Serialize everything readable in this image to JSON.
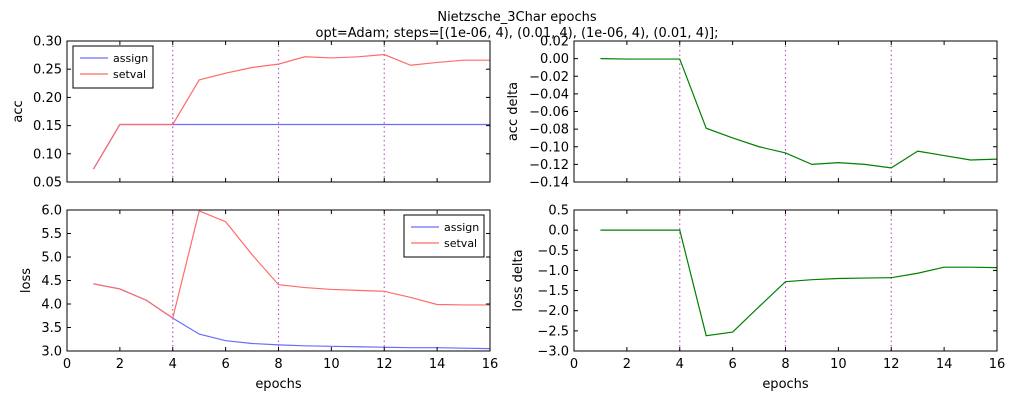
{
  "figure": {
    "title_line1": "Nietzsche_3Char epochs",
    "title_line2": "opt=Adam; steps=[(1e-06, 4), (0.01, 4), (1e-06, 4), (0.01, 4)];"
  },
  "colors": {
    "assign": "#6b6bff",
    "setval": "#ff6b6b",
    "delta": "#008000",
    "vline": "#bf5fbf"
  },
  "chart_data": [
    {
      "id": "acc",
      "type": "line",
      "ylabel": "acc",
      "xlabel": "",
      "xlim": [
        0,
        16
      ],
      "ylim": [
        0.05,
        0.3
      ],
      "xticks": [
        0,
        2,
        4,
        6,
        8,
        10,
        12,
        14,
        16
      ],
      "yticks": [
        0.05,
        0.1,
        0.15,
        0.2,
        0.25,
        0.3
      ],
      "ytick_labels": [
        "0.05",
        "0.10",
        "0.15",
        "0.20",
        "0.25",
        "0.30"
      ],
      "show_xticklabels": false,
      "vlines": [
        4,
        8,
        12
      ],
      "legend": "top-left",
      "x": [
        1,
        2,
        3,
        4,
        5,
        6,
        7,
        8,
        9,
        10,
        11,
        12,
        13,
        14,
        15,
        16
      ],
      "series": [
        {
          "name": "assign",
          "color_key": "assign",
          "values": [
            0.073,
            0.152,
            0.152,
            0.152,
            0.152,
            0.152,
            0.152,
            0.152,
            0.152,
            0.152,
            0.152,
            0.152,
            0.152,
            0.152,
            0.152,
            0.152
          ]
        },
        {
          "name": "setval",
          "color_key": "setval",
          "values": [
            0.073,
            0.152,
            0.152,
            0.152,
            0.231,
            0.243,
            0.253,
            0.259,
            0.272,
            0.27,
            0.272,
            0.276,
            0.257,
            0.262,
            0.266,
            0.266
          ]
        }
      ]
    },
    {
      "id": "acc_delta",
      "type": "line",
      "ylabel": "acc delta",
      "xlabel": "",
      "xlim": [
        0,
        16
      ],
      "ylim": [
        -0.14,
        0.02
      ],
      "xticks": [
        0,
        2,
        4,
        6,
        8,
        10,
        12,
        14,
        16
      ],
      "yticks": [
        -0.14,
        -0.12,
        -0.1,
        -0.08,
        -0.06,
        -0.04,
        -0.02,
        0.0,
        0.02
      ],
      "ytick_labels": [
        "−0.14",
        "−0.12",
        "−0.10",
        "−0.08",
        "−0.06",
        "−0.04",
        "−0.02",
        "0.00",
        "0.02"
      ],
      "show_xticklabels": false,
      "vlines": [
        4,
        8,
        12
      ],
      "legend": "none",
      "x": [
        1,
        2,
        3,
        4,
        5,
        6,
        7,
        8,
        9,
        10,
        11,
        12,
        13,
        14,
        15,
        16
      ],
      "series": [
        {
          "color_key": "delta",
          "values": [
            0.0,
            -0.0005,
            -0.0005,
            -0.0005,
            -0.079,
            -0.09,
            -0.1,
            -0.107,
            -0.12,
            -0.118,
            -0.12,
            -0.124,
            -0.105,
            -0.11,
            -0.115,
            -0.114
          ]
        }
      ]
    },
    {
      "id": "loss",
      "type": "line",
      "ylabel": "loss",
      "xlabel": "epochs",
      "xlim": [
        0,
        16
      ],
      "ylim": [
        3.0,
        6.0
      ],
      "xticks": [
        0,
        2,
        4,
        6,
        8,
        10,
        12,
        14,
        16
      ],
      "yticks": [
        3.0,
        3.5,
        4.0,
        4.5,
        5.0,
        5.5,
        6.0
      ],
      "ytick_labels": [
        "3.0",
        "3.5",
        "4.0",
        "4.5",
        "5.0",
        "5.5",
        "6.0"
      ],
      "show_xticklabels": true,
      "vlines": [
        4,
        8,
        12
      ],
      "legend": "top-right",
      "x": [
        1,
        2,
        3,
        4,
        5,
        6,
        7,
        8,
        9,
        10,
        11,
        12,
        13,
        14,
        15,
        16
      ],
      "series": [
        {
          "name": "assign",
          "color_key": "assign",
          "values": [
            4.43,
            4.32,
            4.08,
            3.7,
            3.36,
            3.22,
            3.16,
            3.13,
            3.11,
            3.1,
            3.09,
            3.08,
            3.07,
            3.07,
            3.06,
            3.05
          ]
        },
        {
          "name": "setval",
          "color_key": "setval",
          "values": [
            4.43,
            4.32,
            4.08,
            3.7,
            5.98,
            5.75,
            5.05,
            4.41,
            4.35,
            4.31,
            4.29,
            4.27,
            4.14,
            3.99,
            3.98,
            3.98
          ]
        }
      ]
    },
    {
      "id": "loss_delta",
      "type": "line",
      "ylabel": "loss delta",
      "xlabel": "epochs",
      "xlim": [
        0,
        16
      ],
      "ylim": [
        -3.0,
        0.5
      ],
      "xticks": [
        0,
        2,
        4,
        6,
        8,
        10,
        12,
        14,
        16
      ],
      "yticks": [
        -3.0,
        -2.5,
        -2.0,
        -1.5,
        -1.0,
        -0.5,
        0.0,
        0.5
      ],
      "ytick_labels": [
        "−3.0",
        "−2.5",
        "−2.0",
        "−1.5",
        "−1.0",
        "−0.5",
        "0.0",
        "0.5"
      ],
      "show_xticklabels": true,
      "vlines": [
        4,
        8,
        12
      ],
      "legend": "none",
      "x": [
        1,
        2,
        3,
        4,
        5,
        6,
        7,
        8,
        9,
        10,
        11,
        12,
        13,
        14,
        15,
        16
      ],
      "series": [
        {
          "color_key": "delta",
          "values": [
            0.0,
            0.0,
            0.0,
            0.0,
            -2.62,
            -2.53,
            -1.9,
            -1.28,
            -1.23,
            -1.2,
            -1.19,
            -1.18,
            -1.07,
            -0.92,
            -0.92,
            -0.93
          ]
        }
      ]
    }
  ]
}
